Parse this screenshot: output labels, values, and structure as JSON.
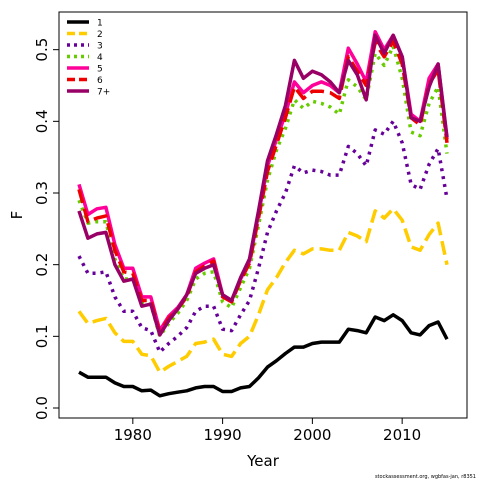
{
  "chart_data": {
    "type": "line",
    "xlabel": "Year",
    "ylabel": "F",
    "xlim": [
      1972,
      2017
    ],
    "ylim": [
      0,
      0.54
    ],
    "x_ticks": [
      1980,
      1990,
      2000,
      2010
    ],
    "y_ticks": [
      0.0,
      0.1,
      0.2,
      0.3,
      0.4,
      0.5
    ],
    "y_tick_labels": [
      "0.0",
      "0.1",
      "0.2",
      "0.3",
      "0.4",
      "0.5"
    ],
    "grid": false,
    "legend_position": "top-left",
    "credit": "stockassessment.org, wgbfas-jan, r8351",
    "x": [
      1974,
      1975,
      1976,
      1977,
      1978,
      1979,
      1980,
      1981,
      1982,
      1983,
      1984,
      1985,
      1986,
      1987,
      1988,
      1989,
      1990,
      1991,
      1992,
      1993,
      1994,
      1995,
      1996,
      1997,
      1998,
      1999,
      2000,
      2001,
      2002,
      2003,
      2004,
      2005,
      2006,
      2007,
      2008,
      2009,
      2010,
      2011,
      2012,
      2013,
      2014,
      2015
    ],
    "series": [
      {
        "name": "1",
        "color": "#000000",
        "dash": "solid",
        "values": [
          0.05,
          0.043,
          0.043,
          0.043,
          0.035,
          0.03,
          0.03,
          0.024,
          0.025,
          0.017,
          0.02,
          0.022,
          0.024,
          0.028,
          0.03,
          0.03,
          0.023,
          0.023,
          0.028,
          0.03,
          0.042,
          0.057,
          0.066,
          0.076,
          0.085,
          0.085,
          0.09,
          0.092,
          0.092,
          0.092,
          0.11,
          0.108,
          0.105,
          0.127,
          0.122,
          0.13,
          0.122,
          0.105,
          0.102,
          0.115,
          0.12,
          0.096
        ]
      },
      {
        "name": "2",
        "color": "#ffcc00",
        "dash": "long",
        "values": [
          0.135,
          0.118,
          0.122,
          0.125,
          0.105,
          0.093,
          0.093,
          0.075,
          0.073,
          0.05,
          0.058,
          0.065,
          0.072,
          0.09,
          0.092,
          0.096,
          0.075,
          0.072,
          0.09,
          0.1,
          0.13,
          0.165,
          0.182,
          0.203,
          0.22,
          0.215,
          0.222,
          0.222,
          0.22,
          0.22,
          0.245,
          0.24,
          0.232,
          0.275,
          0.265,
          0.278,
          0.262,
          0.225,
          0.22,
          0.242,
          0.258,
          0.2
        ]
      },
      {
        "name": "3",
        "color": "#660099",
        "dash": "dot",
        "values": [
          0.212,
          0.188,
          0.188,
          0.19,
          0.155,
          0.135,
          0.135,
          0.112,
          0.108,
          0.078,
          0.09,
          0.1,
          0.112,
          0.135,
          0.142,
          0.142,
          0.11,
          0.108,
          0.13,
          0.15,
          0.195,
          0.245,
          0.275,
          0.3,
          0.338,
          0.328,
          0.332,
          0.33,
          0.325,
          0.325,
          0.365,
          0.355,
          0.338,
          0.388,
          0.382,
          0.4,
          0.37,
          0.312,
          0.305,
          0.34,
          0.362,
          0.292
        ]
      },
      {
        "name": "4",
        "color": "#66cc00",
        "dash": "dot",
        "values": [
          0.29,
          0.258,
          0.26,
          0.26,
          0.208,
          0.18,
          0.18,
          0.148,
          0.145,
          0.1,
          0.118,
          0.132,
          0.15,
          0.18,
          0.188,
          0.19,
          0.148,
          0.14,
          0.168,
          0.195,
          0.255,
          0.318,
          0.36,
          0.39,
          0.43,
          0.418,
          0.428,
          0.425,
          0.42,
          0.41,
          0.458,
          0.448,
          0.43,
          0.495,
          0.478,
          0.505,
          0.46,
          0.385,
          0.38,
          0.425,
          0.448,
          0.355
        ]
      },
      {
        "name": "5",
        "color": "#ff0099",
        "dash": "solid",
        "values": [
          0.312,
          0.27,
          0.278,
          0.28,
          0.228,
          0.195,
          0.195,
          0.155,
          0.155,
          0.108,
          0.128,
          0.14,
          0.158,
          0.195,
          0.202,
          0.208,
          0.158,
          0.15,
          0.18,
          0.205,
          0.27,
          0.338,
          0.375,
          0.41,
          0.455,
          0.44,
          0.45,
          0.455,
          0.45,
          0.44,
          0.502,
          0.48,
          0.455,
          0.525,
          0.5,
          0.52,
          0.49,
          0.41,
          0.4,
          0.46,
          0.48,
          0.375
        ]
      },
      {
        "name": "6",
        "color": "#ee0000",
        "dash": "long",
        "values": [
          0.305,
          0.26,
          0.265,
          0.268,
          0.22,
          0.19,
          0.188,
          0.15,
          0.15,
          0.105,
          0.125,
          0.138,
          0.155,
          0.19,
          0.198,
          0.205,
          0.155,
          0.148,
          0.178,
          0.202,
          0.265,
          0.33,
          0.368,
          0.405,
          0.448,
          0.432,
          0.442,
          0.442,
          0.44,
          0.432,
          0.49,
          0.47,
          0.45,
          0.51,
          0.49,
          0.512,
          0.48,
          0.405,
          0.395,
          0.452,
          0.472,
          0.37
        ]
      },
      {
        "name": "7+",
        "color": "#990066",
        "dash": "solid",
        "values": [
          0.275,
          0.237,
          0.243,
          0.245,
          0.2,
          0.177,
          0.18,
          0.142,
          0.145,
          0.102,
          0.122,
          0.138,
          0.158,
          0.188,
          0.195,
          0.2,
          0.158,
          0.15,
          0.182,
          0.208,
          0.275,
          0.345,
          0.382,
          0.422,
          0.485,
          0.46,
          0.47,
          0.465,
          0.455,
          0.44,
          0.485,
          0.465,
          0.43,
          0.52,
          0.495,
          0.52,
          0.49,
          0.405,
          0.4,
          0.448,
          0.48,
          0.378
        ]
      }
    ]
  }
}
